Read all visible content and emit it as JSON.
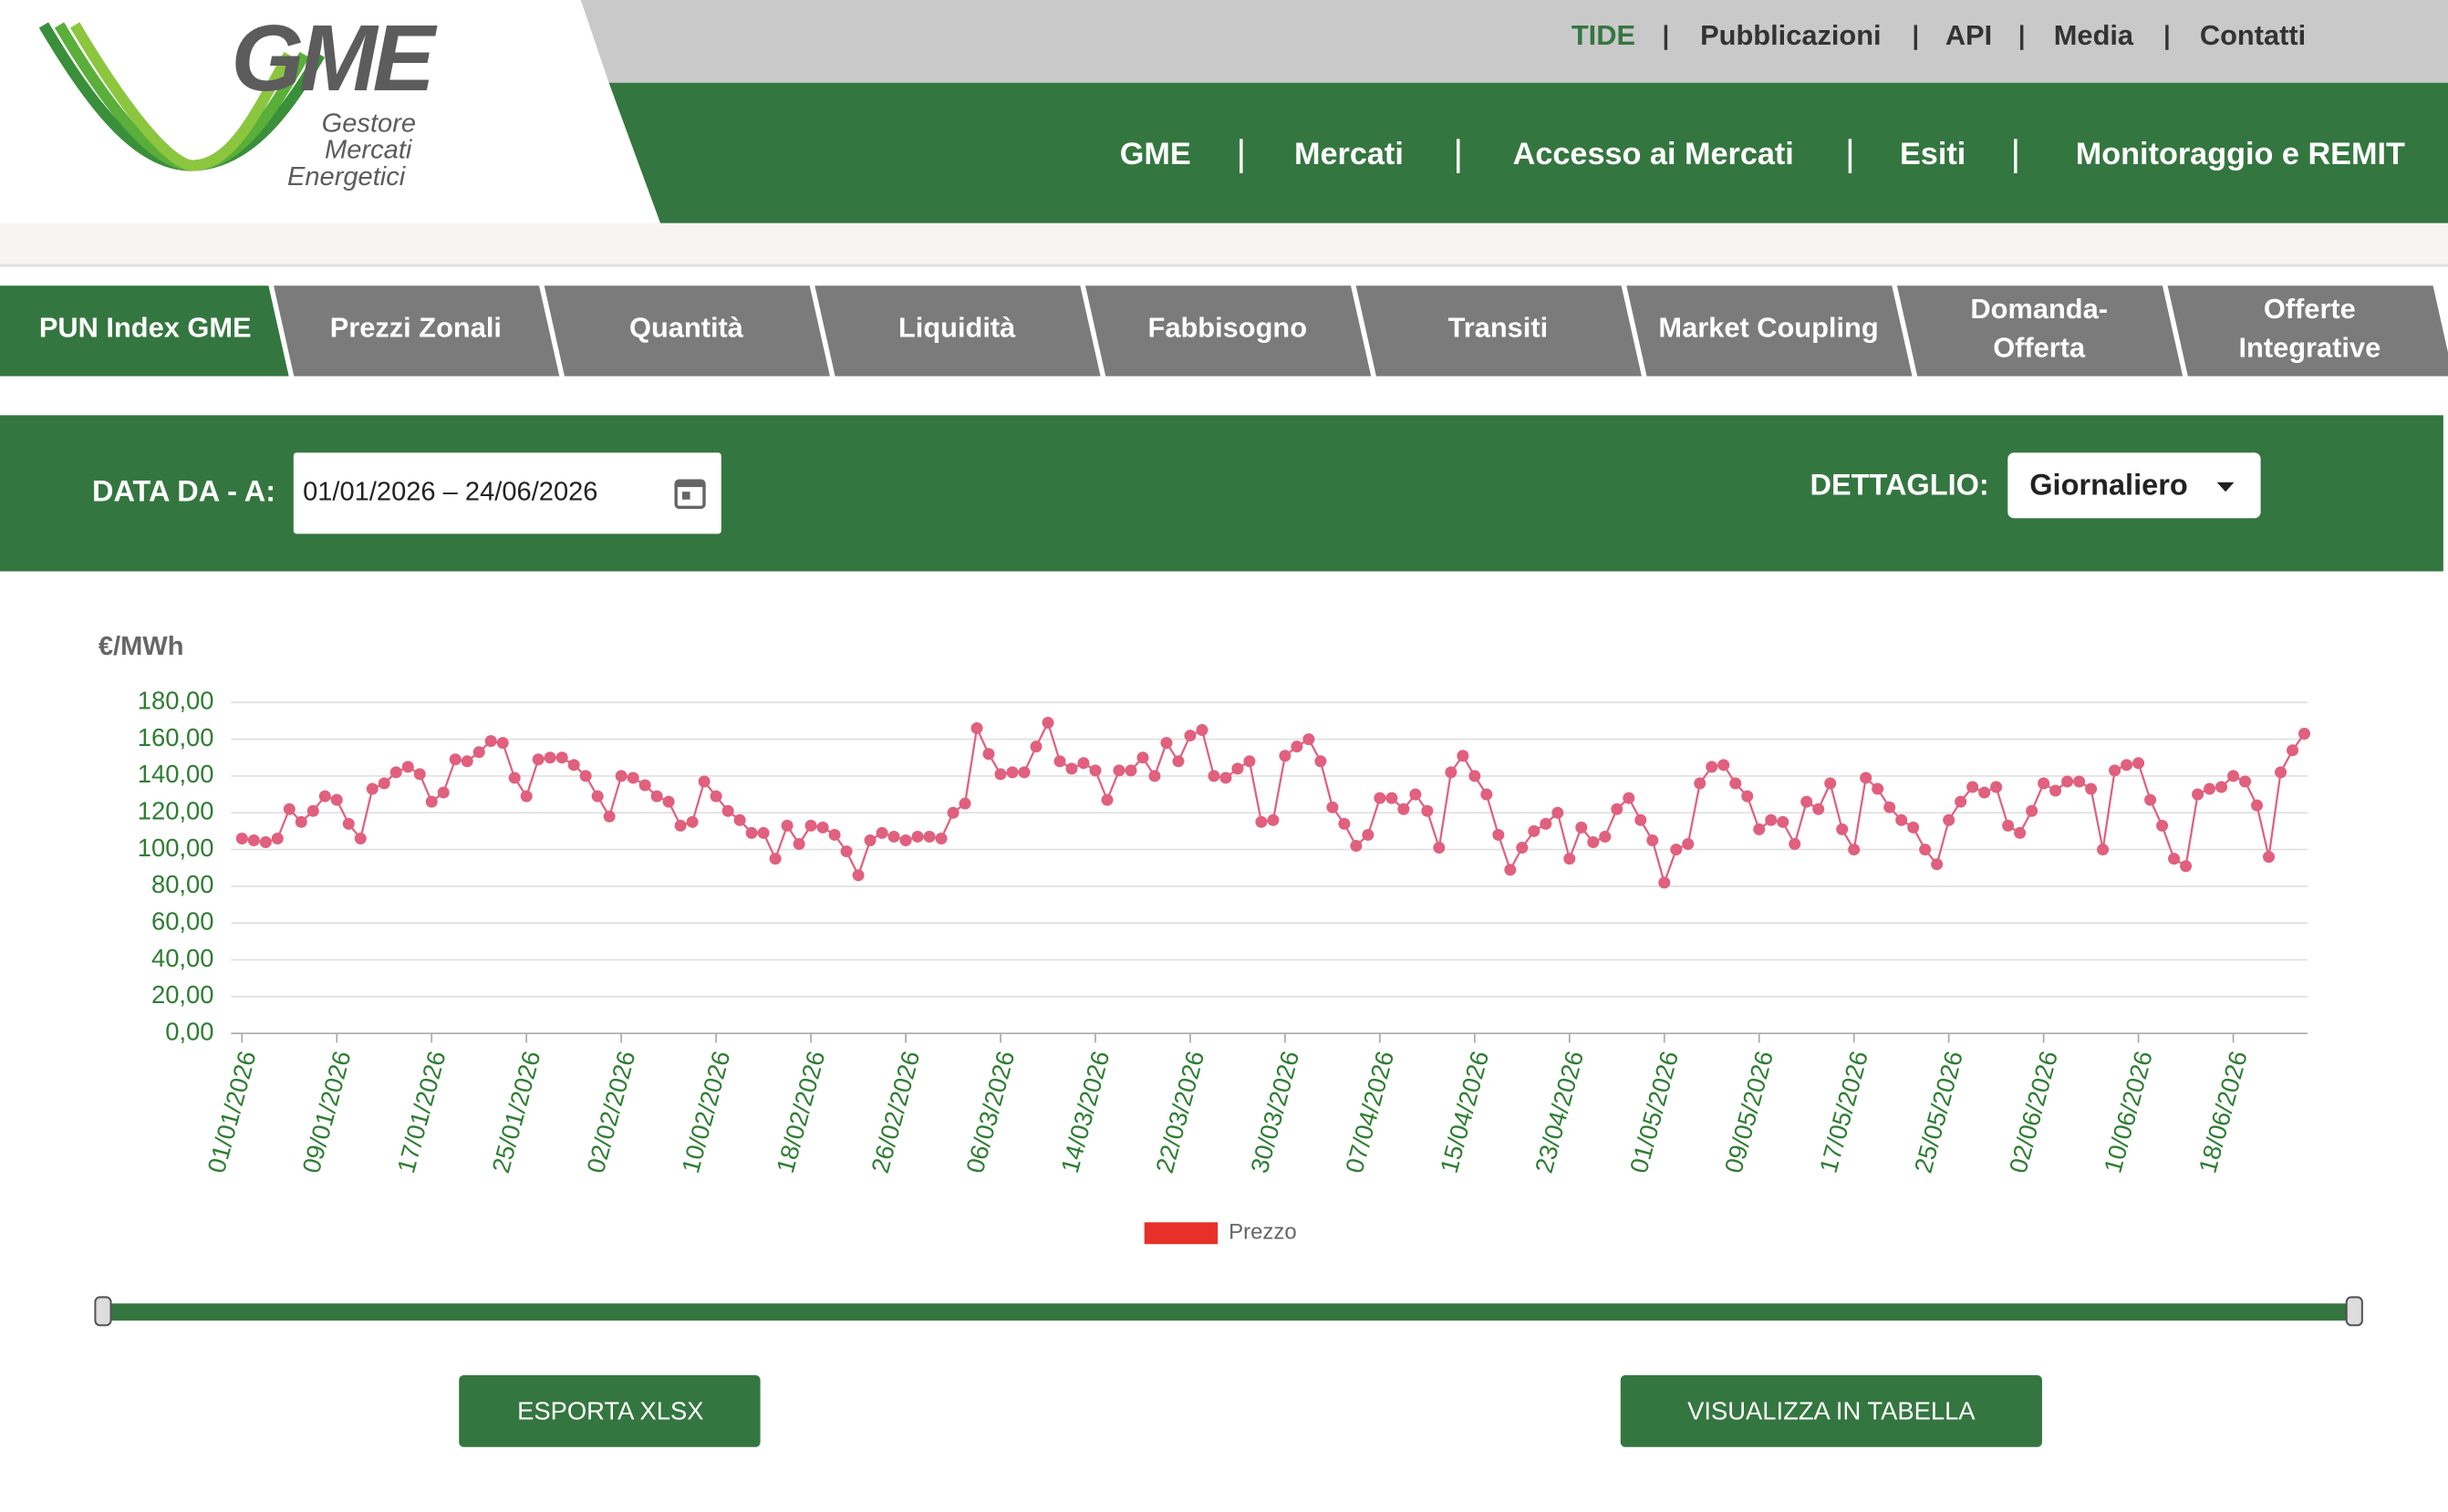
{
  "header": {
    "logo": {
      "title": "GME",
      "subtitle": [
        "Gestore",
        "Mercati",
        "Energetici"
      ]
    },
    "top_nav": [
      "TIDE",
      "Pubblicazioni",
      "API",
      "Media",
      "Contatti"
    ],
    "main_nav": [
      "GME",
      "Mercati",
      "Accesso ai Mercati",
      "Esiti",
      "Monitoraggio e REMIT"
    ]
  },
  "tabs": [
    [
      "PUN Index GME"
    ],
    [
      "Prezzi Zonali"
    ],
    [
      "Quantità"
    ],
    [
      "Liquidità"
    ],
    [
      "Fabbisogno"
    ],
    [
      "Transiti"
    ],
    [
      "Market Coupling"
    ],
    [
      "Domanda-",
      "Offerta"
    ],
    [
      "Offerte",
      "Integrative"
    ]
  ],
  "filters": {
    "date_label": "DATA DA - A:",
    "date_value": "01/01/2026 – 24/06/2026",
    "detail_label": "DETTAGLIO:",
    "detail_value": "Giornaliero"
  },
  "chart_data": {
    "type": "line",
    "y_label": "€/MWh",
    "ylim": [
      0,
      180
    ],
    "yticks": [
      {
        "value": 0,
        "label": "0,00"
      },
      {
        "value": 20,
        "label": "20,00"
      },
      {
        "value": 40,
        "label": "40,00"
      },
      {
        "value": 60,
        "label": "60,00"
      },
      {
        "value": 80,
        "label": "80,00"
      },
      {
        "value": 100,
        "label": "100,00"
      },
      {
        "value": 120,
        "label": "120,00"
      },
      {
        "value": 140,
        "label": "140,00"
      },
      {
        "value": 160,
        "label": "160,00"
      },
      {
        "value": 180,
        "label": "180,00"
      }
    ],
    "grid": true,
    "categories": [
      "01/01/2026",
      null,
      null,
      null,
      null,
      null,
      null,
      null,
      "09/01/2026",
      null,
      null,
      null,
      null,
      null,
      null,
      null,
      "17/01/2026",
      null,
      null,
      null,
      null,
      null,
      null,
      null,
      "25/01/2026",
      null,
      null,
      null,
      null,
      null,
      null,
      null,
      "02/02/2026",
      null,
      null,
      null,
      null,
      null,
      null,
      null,
      "10/02/2026",
      null,
      null,
      null,
      null,
      null,
      null,
      null,
      "18/02/2026",
      null,
      null,
      null,
      null,
      null,
      null,
      null,
      "26/02/2026",
      null,
      null,
      null,
      null,
      null,
      null,
      null,
      "06/03/2026",
      null,
      null,
      null,
      null,
      null,
      null,
      null,
      "14/03/2026",
      null,
      null,
      null,
      null,
      null,
      null,
      null,
      "22/03/2026",
      null,
      null,
      null,
      null,
      null,
      null,
      null,
      "30/03/2026",
      null,
      null,
      null,
      null,
      null,
      null,
      null,
      "07/04/2026",
      null,
      null,
      null,
      null,
      null,
      null,
      null,
      "15/04/2026",
      null,
      null,
      null,
      null,
      null,
      null,
      null,
      "23/04/2026",
      null,
      null,
      null,
      null,
      null,
      null,
      null,
      "01/05/2026",
      null,
      null,
      null,
      null,
      null,
      null,
      null,
      "09/05/2026",
      null,
      null,
      null,
      null,
      null,
      null,
      null,
      "17/05/2026",
      null,
      null,
      null,
      null,
      null,
      null,
      null,
      "25/05/2026",
      null,
      null,
      null,
      null,
      null,
      null,
      null,
      "02/06/2026",
      null,
      null,
      null,
      null,
      null,
      null,
      null,
      "10/06/2026",
      null,
      null,
      null,
      null,
      null,
      null,
      null,
      "18/06/2026",
      null,
      null,
      null,
      null,
      null,
      null
    ],
    "series": [
      {
        "name": "Prezzo",
        "color": "#e0607e",
        "legend_color": "#e8302a",
        "values": [
          106,
          105,
          104,
          106,
          122,
          115,
          121,
          129,
          127,
          114,
          106,
          133,
          136,
          142,
          145,
          141,
          126,
          131,
          149,
          148,
          153,
          159,
          158,
          139,
          129,
          149,
          150,
          150,
          146,
          140,
          129,
          118,
          140,
          139,
          135,
          129,
          126,
          113,
          115,
          137,
          129,
          121,
          116,
          109,
          109,
          95,
          113,
          103,
          113,
          112,
          108,
          99,
          86,
          105,
          109,
          107,
          105,
          107,
          107,
          106,
          120,
          125,
          166,
          152,
          141,
          142,
          142,
          156,
          169,
          148,
          144,
          147,
          143,
          127,
          143,
          143,
          150,
          140,
          158,
          148,
          162,
          165,
          140,
          139,
          144,
          148,
          115,
          116,
          151,
          156,
          160,
          148,
          123,
          114,
          102,
          108,
          128,
          128,
          122,
          130,
          121,
          101,
          142,
          151,
          140,
          130,
          108,
          89,
          101,
          110,
          114,
          120,
          95,
          112,
          104,
          107,
          122,
          128,
          116,
          105,
          82,
          100,
          103,
          136,
          145,
          146,
          136,
          129,
          111,
          116,
          115,
          103,
          126,
          122,
          136,
          111,
          100,
          139,
          133,
          123,
          116,
          112,
          100,
          92,
          116,
          126,
          134,
          131,
          134,
          113,
          109,
          121,
          136,
          132,
          137,
          137,
          133,
          100,
          143,
          146,
          147,
          127,
          113,
          95,
          91,
          130,
          133,
          134,
          140,
          137,
          124,
          96,
          142,
          154,
          163
        ]
      }
    ]
  },
  "buttons": [
    "ESPORTA XLSX",
    "VISUALIZZA IN TABELLA"
  ]
}
